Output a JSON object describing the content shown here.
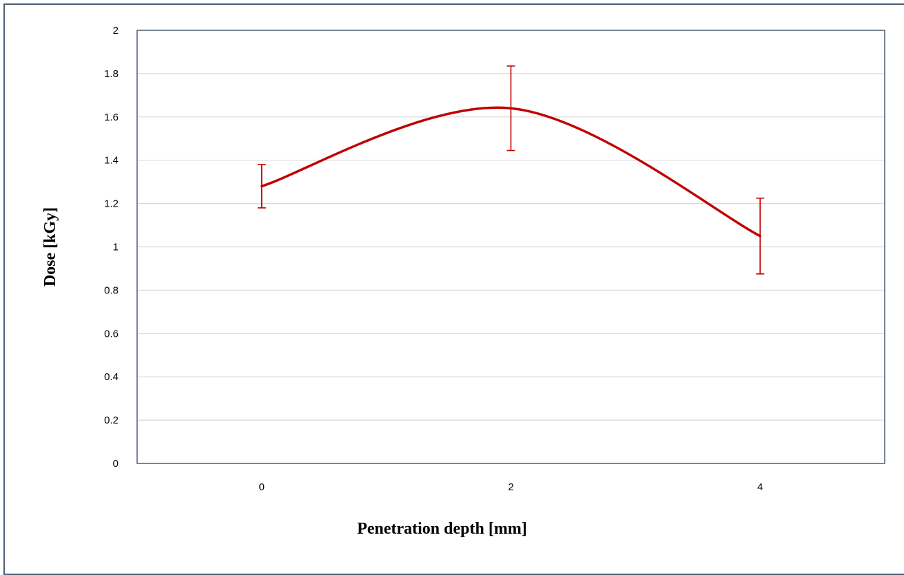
{
  "chart_data": {
    "type": "line",
    "title": "",
    "xlabel": "Penetration depth [mm]",
    "ylabel": "Dose [kGy]",
    "x": [
      0,
      2,
      4
    ],
    "xlim": [
      -1,
      5
    ],
    "ylim": [
      0,
      2
    ],
    "x_ticks": [
      "0",
      "2",
      "4"
    ],
    "y_ticks": [
      "0",
      "0.2",
      "0.4",
      "0.6",
      "0.8",
      "1",
      "1.2",
      "1.4",
      "1.6",
      "1.8",
      "2"
    ],
    "grid": true,
    "smooth": true,
    "series": [
      {
        "name": "",
        "color": "#c00000",
        "values": [
          1.28,
          1.64,
          1.05
        ],
        "error": [
          0.1,
          0.195,
          0.175
        ]
      }
    ]
  }
}
